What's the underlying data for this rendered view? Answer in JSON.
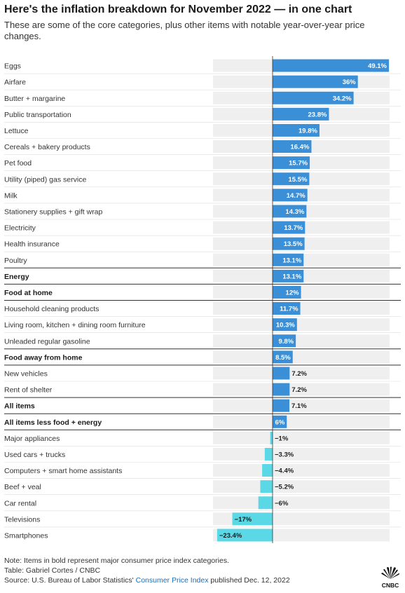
{
  "title": "Here's the inflation breakdown for November 2022 — in one chart",
  "subtitle": "These are some of the core categories, plus other items with notable year-over-year price changes.",
  "colors": {
    "positive": "#3a8fd6",
    "negative": "#5ad8e6",
    "track": "#efefef",
    "separator": "#333333"
  },
  "chart_data": {
    "type": "bar",
    "orientation": "horizontal",
    "categories": [
      "Eggs",
      "Airfare",
      "Butter + margarine",
      "Public transportation",
      "Lettuce",
      "Cereals + bakery products",
      "Pet food",
      "Utility (piped) gas service",
      "Milk",
      "Stationery supplies + gift wrap",
      "Electricity",
      "Health insurance",
      "Poultry",
      "Energy",
      "Food at home",
      "Household cleaning products",
      "Living room, kitchen + dining room furniture",
      "Unleaded regular gasoline",
      "Food away from home",
      "New vehicles",
      "Rent of shelter",
      "All items",
      "All items less food + energy",
      "Major appliances",
      "Used cars + trucks",
      "Computers + smart home assistants",
      "Beef + veal",
      "Car rental",
      "Televisions",
      "Smartphones"
    ],
    "values": [
      49.1,
      36,
      34.2,
      23.8,
      19.8,
      16.4,
      15.7,
      15.5,
      14.7,
      14.3,
      13.7,
      13.5,
      13.1,
      13.1,
      12,
      11.7,
      10.3,
      9.8,
      8.5,
      7.2,
      7.2,
      7.1,
      6,
      -1,
      -3.3,
      -4.4,
      -5.2,
      -6,
      -17,
      -23.4
    ],
    "value_labels": [
      "49.1%",
      "36%",
      "34.2%",
      "23.8%",
      "19.8%",
      "16.4%",
      "15.7%",
      "15.5%",
      "14.7%",
      "14.3%",
      "13.7%",
      "13.5%",
      "13.1%",
      "13.1%",
      "12%",
      "11.7%",
      "10.3%",
      "9.8%",
      "8.5%",
      "7.2%",
      "7.2%",
      "7.1%",
      "6%",
      "−1%",
      "−3.3%",
      "−4.4%",
      "−5.2%",
      "−6%",
      "−17%",
      "−23.4%"
    ],
    "bold": [
      false,
      false,
      false,
      false,
      false,
      false,
      false,
      false,
      false,
      false,
      false,
      false,
      false,
      true,
      true,
      false,
      false,
      false,
      true,
      false,
      false,
      true,
      true,
      false,
      false,
      false,
      false,
      false,
      false,
      false
    ],
    "separator_before": [
      false,
      false,
      false,
      false,
      false,
      false,
      false,
      false,
      false,
      false,
      false,
      false,
      false,
      true,
      true,
      true,
      false,
      false,
      true,
      true,
      false,
      true,
      true,
      true,
      false,
      false,
      false,
      false,
      false,
      false
    ],
    "xlim": [
      -25,
      50
    ]
  },
  "footer": {
    "note": "Note: Items in bold represent major consumer price index categories.",
    "table_credit": "Table: Gabriel Cortes / CNBC",
    "source_prefix": "Source: U.S. Bureau of Labor Statistics' ",
    "source_link": "Consumer Price Index",
    "source_suffix": " published Dec. 12, 2022"
  },
  "logo": {
    "text": "CNBC",
    "icon": "cnbc-peacock-icon"
  }
}
